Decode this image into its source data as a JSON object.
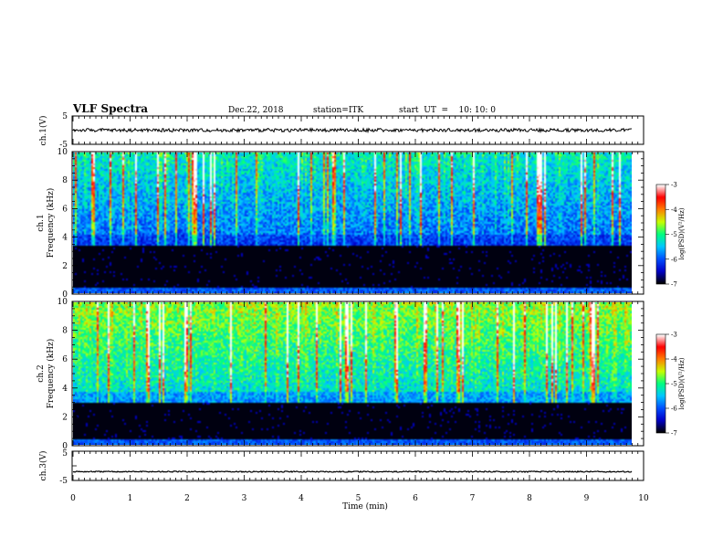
{
  "header": {
    "title": "VLF Spectra",
    "date": "Dec.22, 2018",
    "station": "station=ITK",
    "start_ut": "start  UT  =    10: 10: 0"
  },
  "chart_data": [
    {
      "type": "line",
      "panel": "ch1-waveform",
      "ylabel": "ch.1(V)",
      "y_tick_labels": [
        "5",
        "-5"
      ],
      "ylim": [
        -5,
        5
      ],
      "xlim": [
        0,
        10
      ],
      "series": [
        {
          "values_approx_constant": 0
        }
      ]
    },
    {
      "type": "heatmap",
      "panel": "ch1-spectrogram",
      "ylabel_line1": "ch.1",
      "ylabel_line2": "Frequency (kHz)",
      "y_ticks": [
        "0",
        "2",
        "4",
        "6",
        "8",
        "10"
      ],
      "ylim": [
        0,
        10
      ],
      "xlim": [
        0,
        9.8
      ],
      "colorbar_label": "log(PSD)(V²/Hz)",
      "colorbar_ticks": [
        "-3",
        "-4",
        "-5",
        "-6",
        "-7"
      ],
      "colorbar_range": [
        -7,
        -3
      ],
      "noise_floor_top_khz": 3.5
    },
    {
      "type": "heatmap",
      "panel": "ch2-spectrogram",
      "ylabel_line1": "ch.2",
      "ylabel_line2": "Frequency (kHz)",
      "y_ticks": [
        "0",
        "2",
        "4",
        "6",
        "8",
        "10"
      ],
      "ylim": [
        0,
        10
      ],
      "xlim": [
        0,
        9.8
      ],
      "colorbar_label": "log(PSD)(V²/Hz)",
      "colorbar_ticks": [
        "-3",
        "-4",
        "-5",
        "-6",
        "-7"
      ],
      "colorbar_range": [
        -7,
        -3
      ],
      "noise_floor_top_khz": 3.0
    },
    {
      "type": "line",
      "panel": "ch3-waveform",
      "ylabel": "ch.3(V)",
      "y_tick_labels": [
        "5",
        "-5"
      ],
      "ylim": [
        -5,
        5
      ],
      "xlim": [
        0,
        10
      ],
      "series": [
        {
          "values_approx_constant": -2
        }
      ]
    }
  ],
  "x_axis": {
    "label": "Time (min)",
    "ticks": [
      "0",
      "1",
      "2",
      "3",
      "4",
      "5",
      "6",
      "7",
      "8",
      "9",
      "10"
    ],
    "xlim": [
      0,
      10
    ]
  },
  "colors": {
    "colormap": [
      "#000000",
      "#0000c8",
      "#0050ff",
      "#00c8ff",
      "#00ff80",
      "#c8ff00",
      "#ff8000",
      "#ff0000",
      "#ffffff"
    ]
  }
}
